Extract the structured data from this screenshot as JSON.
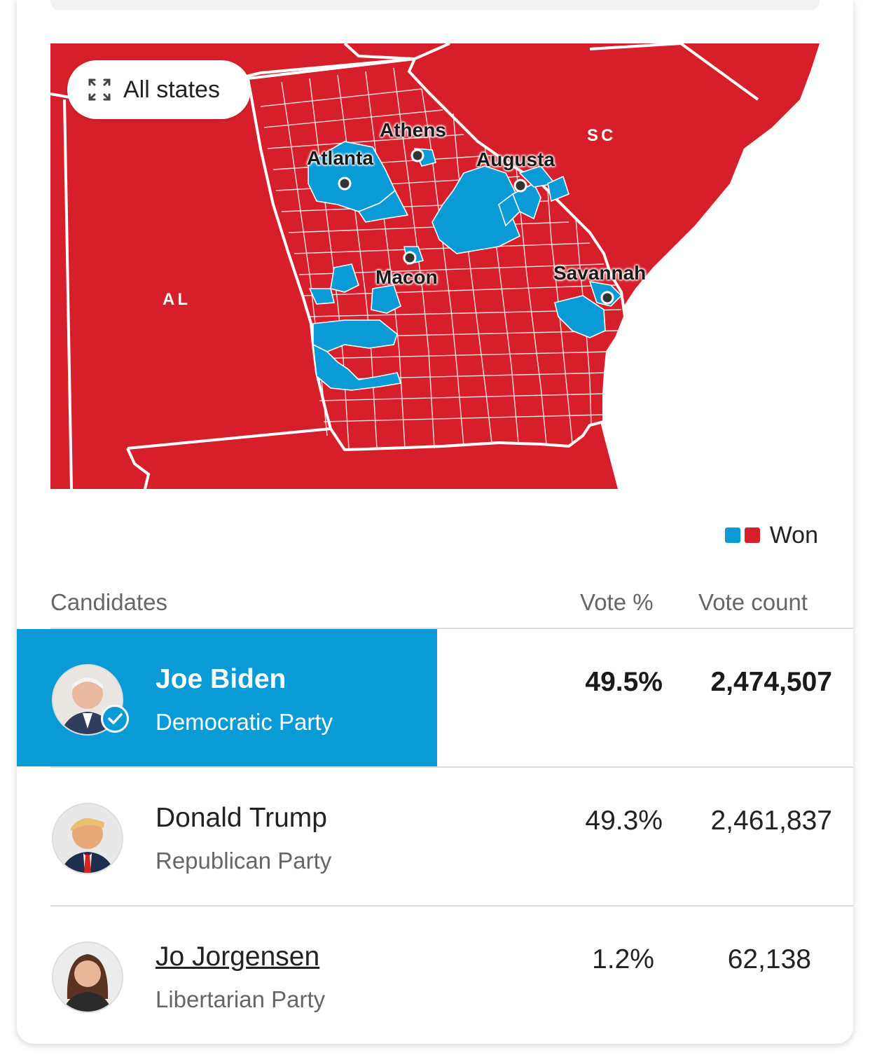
{
  "map": {
    "all_states_label": "All states",
    "expand_icon": "expand-icon",
    "cities": [
      "Athens",
      "Atlanta",
      "Augusta",
      "Macon",
      "Savannah"
    ],
    "states": {
      "al": "AL",
      "sc": "SC"
    },
    "colors": {
      "dem": "#0a9bd6",
      "rep": "#d71f2b",
      "border": "#ffffff"
    }
  },
  "legend": {
    "label": "Won",
    "colors": [
      "#0a9bd6",
      "#d71f2b"
    ]
  },
  "table": {
    "headers": {
      "candidates": "Candidates",
      "vote_pct": "Vote %",
      "vote_count": "Vote count"
    },
    "candidates": [
      {
        "name": "Joe Biden",
        "party": "Democratic Party",
        "vote_pct": "49.5%",
        "vote_count": "2,474,507",
        "winner": true,
        "badge_icon": "checkmark-icon"
      },
      {
        "name": "Donald Trump",
        "party": "Republican Party",
        "vote_pct": "49.3%",
        "vote_count": "2,461,837",
        "winner": false
      },
      {
        "name": "Jo Jorgensen",
        "party": "Libertarian Party",
        "vote_pct": "1.2%",
        "vote_count": "62,138",
        "winner": false
      }
    ]
  }
}
